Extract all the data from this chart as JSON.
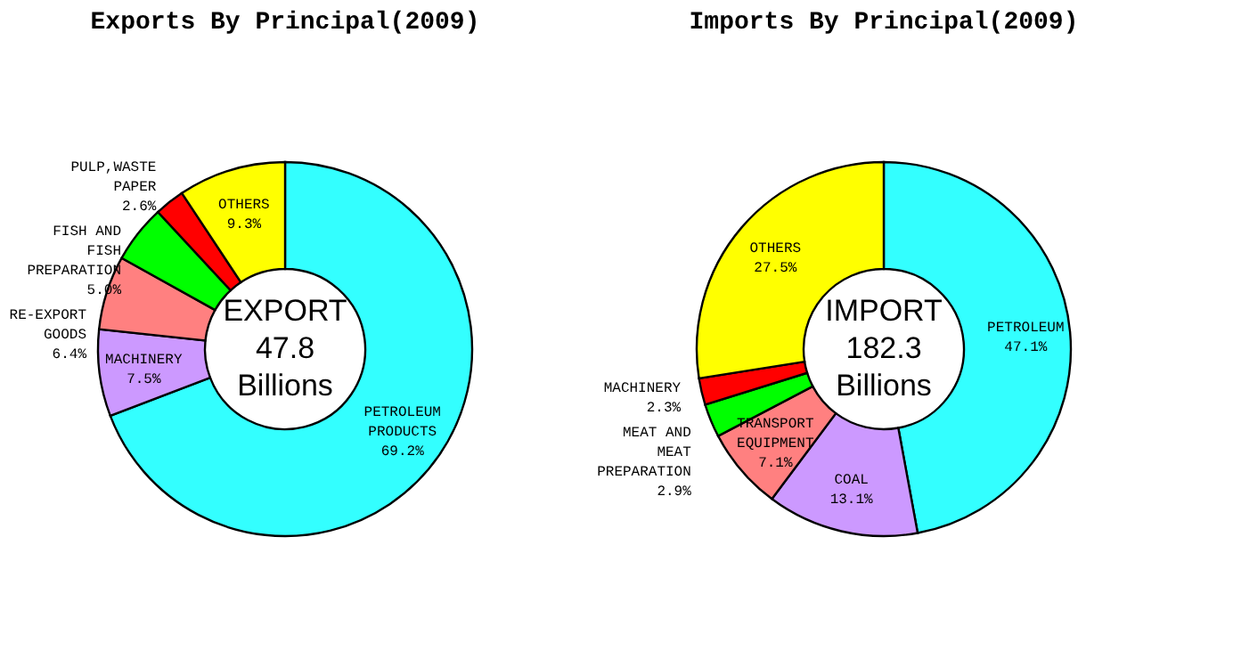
{
  "chart_data": [
    {
      "type": "donut",
      "title": "Exports By Principal(2009)",
      "categories": [
        "PETROLEUM PRODUCTS",
        "MACHINERY",
        "RE-EXPORT GOODS",
        "FISH AND FISH PREPARATION",
        "PULP,WASTE PAPER",
        "OTHERS"
      ],
      "values": [
        69.2,
        7.5,
        6.4,
        5.0,
        2.6,
        9.3
      ],
      "colors": [
        "#33ffff",
        "#cc99ff",
        "#ff8080",
        "#00ff00",
        "#ff0000",
        "#ffff00"
      ],
      "value_labels": [
        "69.2%",
        "7.5%",
        "6.4%",
        "5.0%",
        "2.6%",
        "9.3%"
      ],
      "annotations": [
        "EXPORT 47.8 Billions"
      ]
    },
    {
      "type": "donut",
      "title": "Imports By Principal(2009)",
      "categories": [
        "PETROLEUM",
        "COAL",
        "TRANSPORT EQUIPMENT",
        "MEAT AND MEAT PREPARATION",
        "MACHINERY",
        "OTHERS"
      ],
      "values": [
        47.1,
        13.1,
        7.1,
        2.9,
        2.3,
        27.5
      ],
      "colors": [
        "#33ffff",
        "#cc99ff",
        "#ff8080",
        "#00ff00",
        "#ff0000",
        "#ffff00"
      ],
      "value_labels": [
        "47.1%",
        "13.1%",
        "7.1%",
        "2.9%",
        "2.3%",
        "27.5%"
      ],
      "annotations": [
        "IMPORT 182.3 Billions"
      ]
    }
  ]
}
